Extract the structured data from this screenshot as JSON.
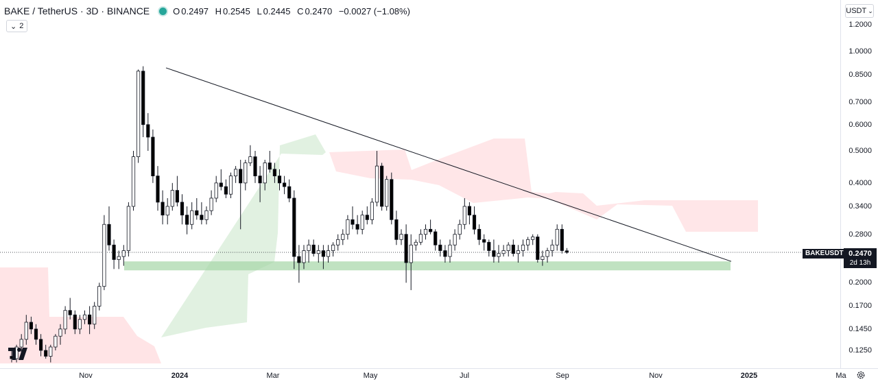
{
  "header": {
    "symbol": "BAKE / TetherUS · 3D · BINANCE",
    "ohlc": [
      {
        "label": "O",
        "value": "0.2497"
      },
      {
        "label": "H",
        "value": "0.2545"
      },
      {
        "label": "L",
        "value": "0.2445"
      },
      {
        "label": "C",
        "value": "0.2470"
      },
      {
        "label": "",
        "value": "−0.0027 (−1.08%)"
      }
    ],
    "indicator_count": "2"
  },
  "currency": "USDT",
  "price_axis": [
    "1.2000",
    "1.0000",
    "0.8500",
    "0.7000",
    "0.6000",
    "0.5000",
    "0.4000",
    "0.3400",
    "0.2800",
    "0.2000",
    "0.1700",
    "0.1450",
    "0.1250"
  ],
  "time_axis": [
    {
      "label": "Nov",
      "bold": false
    },
    {
      "label": "2024",
      "bold": true
    },
    {
      "label": "Mar",
      "bold": false
    },
    {
      "label": "May",
      "bold": false
    },
    {
      "label": "Jul",
      "bold": false
    },
    {
      "label": "Sep",
      "bold": false
    },
    {
      "label": "Nov",
      "bold": false
    },
    {
      "label": "2025",
      "bold": true
    },
    {
      "label": "Ma",
      "bold": false
    }
  ],
  "symbol_label": "BAKEUSDT",
  "last_price": "0.2470",
  "countdown": "2d 13h",
  "colors": {
    "up": "#ffffff",
    "down": "#000000",
    "support": "#a5d6a7",
    "cloud_bear": "#ffcdd2",
    "cloud_bull": "#c8e6c9"
  },
  "chart_data": {
    "type": "candlestick",
    "price_scale": "log",
    "ylim": [
      0.115,
      1.3
    ],
    "support_zone": [
      0.218,
      0.232
    ],
    "trendline": {
      "from": 0.89,
      "to": 0.232
    },
    "candles": [
      [
        0.12,
        0.125,
        0.115,
        0.118
      ],
      [
        0.118,
        0.13,
        0.115,
        0.128
      ],
      [
        0.128,
        0.14,
        0.12,
        0.135
      ],
      [
        0.135,
        0.16,
        0.13,
        0.152
      ],
      [
        0.152,
        0.158,
        0.14,
        0.145
      ],
      [
        0.145,
        0.15,
        0.13,
        0.135
      ],
      [
        0.135,
        0.14,
        0.12,
        0.125
      ],
      [
        0.125,
        0.13,
        0.118,
        0.12
      ],
      [
        0.12,
        0.13,
        0.115,
        0.128
      ],
      [
        0.128,
        0.14,
        0.125,
        0.138
      ],
      [
        0.138,
        0.15,
        0.13,
        0.145
      ],
      [
        0.145,
        0.17,
        0.14,
        0.165
      ],
      [
        0.165,
        0.18,
        0.155,
        0.16
      ],
      [
        0.16,
        0.165,
        0.14,
        0.145
      ],
      [
        0.145,
        0.16,
        0.14,
        0.155
      ],
      [
        0.155,
        0.165,
        0.15,
        0.16
      ],
      [
        0.16,
        0.17,
        0.14,
        0.15
      ],
      [
        0.15,
        0.175,
        0.145,
        0.17
      ],
      [
        0.17,
        0.2,
        0.165,
        0.195
      ],
      [
        0.195,
        0.32,
        0.19,
        0.3
      ],
      [
        0.3,
        0.34,
        0.25,
        0.26
      ],
      [
        0.26,
        0.27,
        0.22,
        0.235
      ],
      [
        0.235,
        0.25,
        0.22,
        0.24
      ],
      [
        0.24,
        0.26,
        0.225,
        0.25
      ],
      [
        0.25,
        0.35,
        0.24,
        0.34
      ],
      [
        0.34,
        0.5,
        0.33,
        0.48
      ],
      [
        0.48,
        0.88,
        0.46,
        0.87
      ],
      [
        0.87,
        0.9,
        0.55,
        0.6
      ],
      [
        0.6,
        0.65,
        0.5,
        0.55
      ],
      [
        0.55,
        0.58,
        0.4,
        0.42
      ],
      [
        0.42,
        0.45,
        0.33,
        0.35
      ],
      [
        0.35,
        0.38,
        0.3,
        0.32
      ],
      [
        0.32,
        0.36,
        0.3,
        0.34
      ],
      [
        0.34,
        0.4,
        0.33,
        0.38
      ],
      [
        0.38,
        0.42,
        0.34,
        0.35
      ],
      [
        0.35,
        0.37,
        0.3,
        0.32
      ],
      [
        0.32,
        0.34,
        0.28,
        0.3
      ],
      [
        0.3,
        0.35,
        0.29,
        0.33
      ],
      [
        0.33,
        0.36,
        0.31,
        0.32
      ],
      [
        0.32,
        0.35,
        0.3,
        0.31
      ],
      [
        0.31,
        0.34,
        0.3,
        0.33
      ],
      [
        0.33,
        0.38,
        0.32,
        0.36
      ],
      [
        0.36,
        0.42,
        0.35,
        0.4
      ],
      [
        0.4,
        0.44,
        0.38,
        0.39
      ],
      [
        0.39,
        0.41,
        0.36,
        0.37
      ],
      [
        0.37,
        0.43,
        0.36,
        0.42
      ],
      [
        0.42,
        0.45,
        0.4,
        0.44
      ],
      [
        0.44,
        0.47,
        0.29,
        0.4
      ],
      [
        0.4,
        0.47,
        0.38,
        0.46
      ],
      [
        0.46,
        0.52,
        0.45,
        0.48
      ],
      [
        0.48,
        0.5,
        0.4,
        0.42
      ],
      [
        0.42,
        0.45,
        0.35,
        0.4
      ],
      [
        0.4,
        0.47,
        0.38,
        0.46
      ],
      [
        0.46,
        0.5,
        0.43,
        0.44
      ],
      [
        0.44,
        0.46,
        0.4,
        0.42
      ],
      [
        0.42,
        0.44,
        0.38,
        0.4
      ],
      [
        0.4,
        0.42,
        0.37,
        0.39
      ],
      [
        0.39,
        0.41,
        0.35,
        0.36
      ],
      [
        0.36,
        0.38,
        0.22,
        0.24
      ],
      [
        0.24,
        0.26,
        0.2,
        0.23
      ],
      [
        0.23,
        0.26,
        0.22,
        0.25
      ],
      [
        0.25,
        0.27,
        0.23,
        0.26
      ],
      [
        0.26,
        0.27,
        0.24,
        0.245
      ],
      [
        0.245,
        0.26,
        0.23,
        0.25
      ],
      [
        0.25,
        0.26,
        0.22,
        0.24
      ],
      [
        0.24,
        0.26,
        0.23,
        0.25
      ],
      [
        0.25,
        0.265,
        0.24,
        0.26
      ],
      [
        0.26,
        0.28,
        0.25,
        0.27
      ],
      [
        0.27,
        0.29,
        0.26,
        0.28
      ],
      [
        0.28,
        0.32,
        0.27,
        0.31
      ],
      [
        0.31,
        0.34,
        0.29,
        0.3
      ],
      [
        0.3,
        0.32,
        0.28,
        0.29
      ],
      [
        0.29,
        0.33,
        0.28,
        0.32
      ],
      [
        0.32,
        0.34,
        0.3,
        0.31
      ],
      [
        0.31,
        0.36,
        0.3,
        0.35
      ],
      [
        0.35,
        0.5,
        0.34,
        0.45
      ],
      [
        0.45,
        0.46,
        0.33,
        0.34
      ],
      [
        0.34,
        0.42,
        0.33,
        0.41
      ],
      [
        0.41,
        0.43,
        0.3,
        0.31
      ],
      [
        0.31,
        0.33,
        0.26,
        0.27
      ],
      [
        0.27,
        0.29,
        0.26,
        0.28
      ],
      [
        0.28,
        0.3,
        0.2,
        0.23
      ],
      [
        0.23,
        0.28,
        0.19,
        0.26
      ],
      [
        0.26,
        0.27,
        0.25,
        0.265
      ],
      [
        0.265,
        0.29,
        0.26,
        0.28
      ],
      [
        0.28,
        0.3,
        0.27,
        0.29
      ],
      [
        0.29,
        0.31,
        0.28,
        0.285
      ],
      [
        0.285,
        0.29,
        0.25,
        0.26
      ],
      [
        0.26,
        0.27,
        0.24,
        0.25
      ],
      [
        0.25,
        0.26,
        0.23,
        0.24
      ],
      [
        0.24,
        0.27,
        0.23,
        0.26
      ],
      [
        0.26,
        0.29,
        0.25,
        0.28
      ],
      [
        0.28,
        0.31,
        0.27,
        0.3
      ],
      [
        0.3,
        0.36,
        0.29,
        0.34
      ],
      [
        0.34,
        0.35,
        0.3,
        0.32
      ],
      [
        0.32,
        0.34,
        0.28,
        0.29
      ],
      [
        0.29,
        0.3,
        0.26,
        0.27
      ],
      [
        0.27,
        0.28,
        0.25,
        0.265
      ],
      [
        0.265,
        0.27,
        0.24,
        0.25
      ],
      [
        0.25,
        0.27,
        0.23,
        0.24
      ],
      [
        0.24,
        0.26,
        0.23,
        0.245
      ],
      [
        0.245,
        0.26,
        0.24,
        0.25
      ],
      [
        0.25,
        0.265,
        0.24,
        0.26
      ],
      [
        0.26,
        0.27,
        0.24,
        0.245
      ],
      [
        0.245,
        0.26,
        0.23,
        0.25
      ],
      [
        0.25,
        0.27,
        0.24,
        0.26
      ],
      [
        0.26,
        0.275,
        0.25,
        0.27
      ],
      [
        0.27,
        0.28,
        0.26,
        0.275
      ],
      [
        0.275,
        0.28,
        0.23,
        0.235
      ],
      [
        0.235,
        0.25,
        0.225,
        0.24
      ],
      [
        0.24,
        0.255,
        0.23,
        0.25
      ],
      [
        0.25,
        0.27,
        0.24,
        0.26
      ],
      [
        0.26,
        0.3,
        0.25,
        0.29
      ],
      [
        0.29,
        0.3,
        0.245,
        0.25
      ],
      [
        0.2497,
        0.2545,
        0.2445,
        0.247
      ]
    ]
  }
}
